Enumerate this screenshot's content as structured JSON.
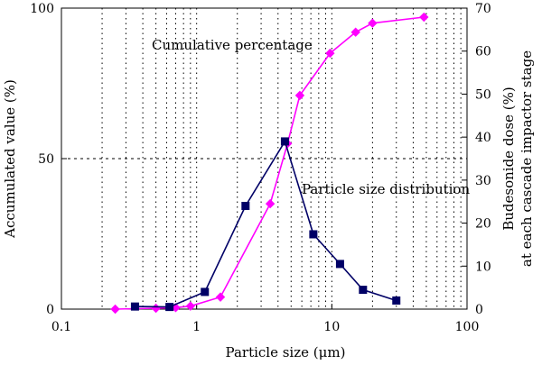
{
  "chart_data": {
    "type": "line",
    "xlabel": "Particle size (μm)",
    "ylabel_left": "Accumulated value (%)",
    "ylabel_right": [
      "Budesonide dose (%)",
      "at each cascade impactor stage"
    ],
    "x_scale": "log",
    "xlim": [
      0.1,
      100
    ],
    "ylim_left": [
      0,
      100
    ],
    "ylim_right": [
      0,
      70
    ],
    "x_ticks": [
      "0.1",
      "1",
      "10",
      "100"
    ],
    "y_left_ticks": [
      "0",
      "50",
      "100"
    ],
    "y_right_ticks": [
      "0",
      "10",
      "20",
      "30",
      "40",
      "50",
      "60",
      "70"
    ],
    "grid": "dotted vertical at log minors, dashed horizontal at 50",
    "series": [
      {
        "name": "Cumulative percentage",
        "axis": "left",
        "color": "#ff00ff",
        "marker": "diamond",
        "x": [
          0.25,
          0.5,
          0.7,
          0.9,
          1.5,
          3.5,
          4.7,
          5.8,
          9.7,
          15,
          20,
          48
        ],
        "y": [
          0,
          0.3,
          0.5,
          1,
          4,
          35,
          55,
          71,
          85,
          92,
          95,
          97
        ]
      },
      {
        "name": "Particle size distribution",
        "axis": "right",
        "color": "#000066",
        "marker": "square",
        "x": [
          0.35,
          0.63,
          1.15,
          2.3,
          4.5,
          7.3,
          11.5,
          17,
          30
        ],
        "y": [
          0.6,
          0.5,
          4,
          24,
          39,
          17.4,
          10.5,
          4.5,
          2
        ]
      }
    ]
  }
}
